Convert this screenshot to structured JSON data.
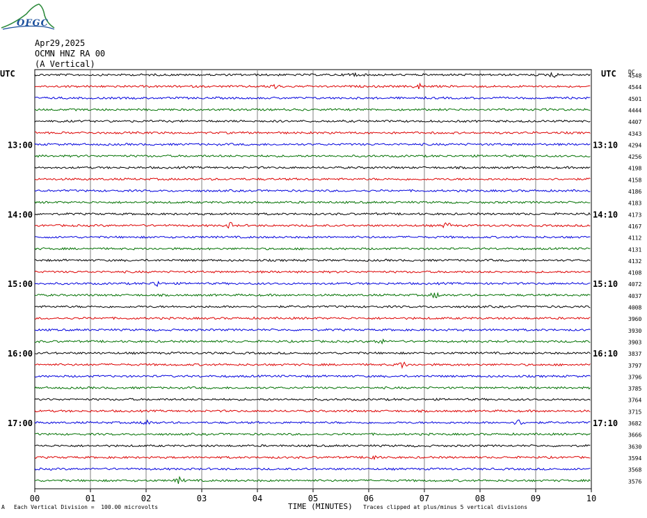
{
  "logo": {
    "text": "OFGC",
    "icon": "volcano-logo-icon"
  },
  "header": {
    "date": "Apr29,2025",
    "station": "OCMN HNZ RA 00",
    "component": "(A Vertical)"
  },
  "left_axis_label": "UTC",
  "right_axis_label": "UTC",
  "dc_label": "DC",
  "footer": {
    "scale_note": "Each Vertical Division =  100.00 microvolts",
    "clip_note": "Traces clipped at plus/minus 5 vertical divisions",
    "corner_mark": "A"
  },
  "colors": {
    "trace_cycle": [
      "#000000",
      "#dd0000",
      "#0000dd",
      "#007000"
    ],
    "grid": "#808080"
  },
  "chart_data": {
    "type": "line",
    "title": "",
    "xlabel": "TIME (MINUTES)",
    "x_ticks": [
      "00",
      "01",
      "02",
      "03",
      "04",
      "05",
      "06",
      "07",
      "08",
      "09",
      "10"
    ],
    "xlim": [
      0,
      10
    ],
    "rows": 36,
    "row_minutes": 10,
    "left_time_labels": [
      {
        "row": 6,
        "label": "13:00"
      },
      {
        "row": 12,
        "label": "14:00"
      },
      {
        "row": 18,
        "label": "15:00"
      },
      {
        "row": 24,
        "label": "16:00"
      },
      {
        "row": 30,
        "label": "17:00"
      }
    ],
    "right_time_labels": [
      {
        "row": 6,
        "label": "13:10"
      },
      {
        "row": 12,
        "label": "14:10"
      },
      {
        "row": 18,
        "label": "15:10"
      },
      {
        "row": 24,
        "label": "16:10"
      },
      {
        "row": 30,
        "label": "17:10"
      }
    ],
    "dc_values": [
      4548,
      4544,
      4501,
      4444,
      4407,
      4343,
      4294,
      4256,
      4198,
      4158,
      4186,
      4183,
      4173,
      4167,
      4112,
      4131,
      4132,
      4108,
      4072,
      4037,
      4008,
      3960,
      3930,
      3903,
      3837,
      3797,
      3796,
      3785,
      3764,
      3715,
      3682,
      3666,
      3630,
      3594,
      3568,
      3576
    ],
    "events": [
      {
        "row": 0,
        "minute": 5.7
      },
      {
        "row": 0,
        "minute": 9.3
      },
      {
        "row": 1,
        "minute": 4.3
      },
      {
        "row": 1,
        "minute": 6.9
      },
      {
        "row": 13,
        "minute": 7.4
      },
      {
        "row": 13,
        "minute": 3.5
      },
      {
        "row": 18,
        "minute": 2.2
      },
      {
        "row": 19,
        "minute": 7.2
      },
      {
        "row": 23,
        "minute": 6.2
      },
      {
        "row": 25,
        "minute": 6.6
      },
      {
        "row": 30,
        "minute": 2.0
      },
      {
        "row": 30,
        "minute": 8.7
      },
      {
        "row": 33,
        "minute": 6.1
      },
      {
        "row": 35,
        "minute": 2.6
      }
    ]
  }
}
